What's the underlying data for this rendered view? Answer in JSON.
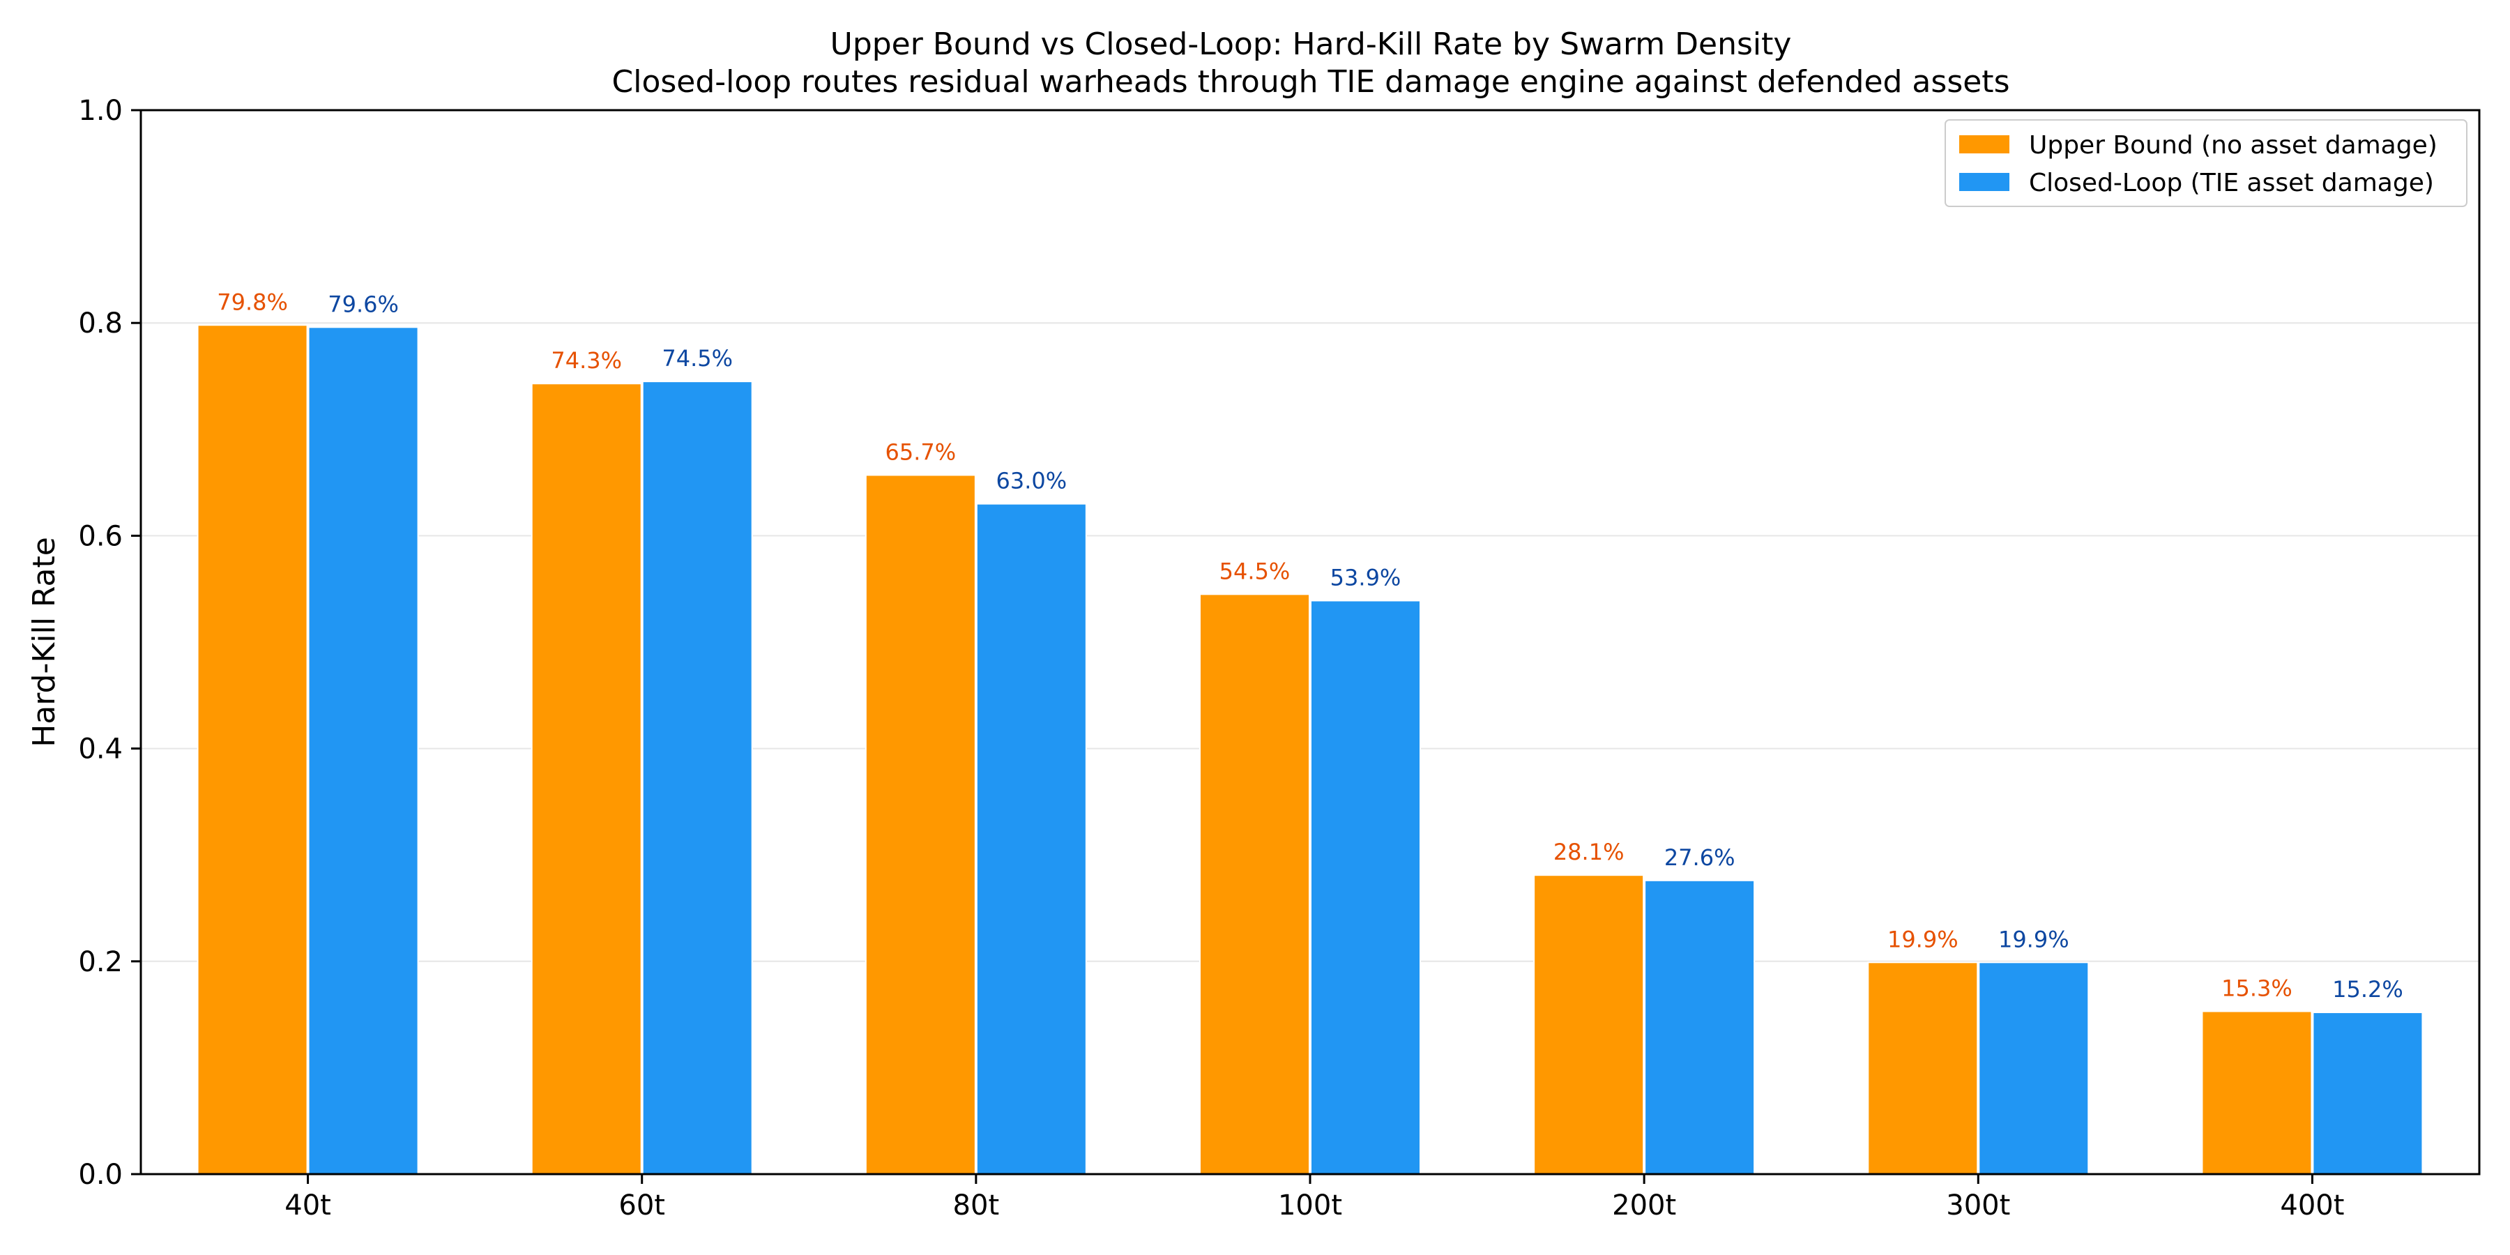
{
  "chart_data": {
    "type": "bar",
    "title": "Upper Bound vs Closed-Loop: Hard-Kill Rate by Swarm Density",
    "subtitle": "Closed-loop routes residual warheads through TIE damage engine against defended assets",
    "xlabel": "",
    "ylabel": "Hard-Kill Rate",
    "ylim": [
      0,
      1.0
    ],
    "yticks": [
      0.0,
      0.2,
      0.4,
      0.6,
      0.8,
      1.0
    ],
    "ytick_labels": [
      "0.0",
      "0.2",
      "0.4",
      "0.6",
      "0.8",
      "1.0"
    ],
    "grid": true,
    "legend_position": "top-right",
    "categories": [
      "40t",
      "60t",
      "80t",
      "100t",
      "200t",
      "300t",
      "400t"
    ],
    "series": [
      {
        "name": "Upper Bound (no asset damage)",
        "color": "#ff9800",
        "label_color": "#e65100",
        "values": [
          0.798,
          0.743,
          0.657,
          0.545,
          0.281,
          0.199,
          0.153
        ],
        "labels": [
          "79.8%",
          "74.3%",
          "65.7%",
          "54.5%",
          "28.1%",
          "19.9%",
          "15.3%"
        ]
      },
      {
        "name": "Closed-Loop (TIE asset damage)",
        "color": "#2196f3",
        "label_color": "#0d47a1",
        "values": [
          0.796,
          0.745,
          0.63,
          0.539,
          0.276,
          0.199,
          0.152
        ],
        "labels": [
          "79.6%",
          "74.5%",
          "63.0%",
          "53.9%",
          "27.6%",
          "19.9%",
          "15.2%"
        ]
      }
    ]
  }
}
